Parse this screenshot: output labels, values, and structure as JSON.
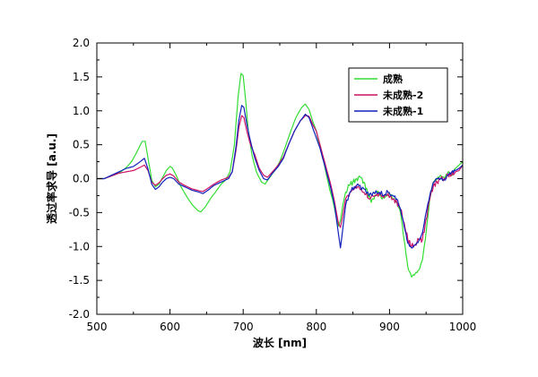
{
  "chart_data": {
    "type": "line",
    "xlabel": "波长 [nm]",
    "ylabel": "透过率求导 [a.u.]",
    "xlim": [
      500,
      1000
    ],
    "ylim": [
      -2.0,
      2.0
    ],
    "x_ticks": [
      500,
      600,
      700,
      800,
      900,
      1000
    ],
    "y_ticks": [
      -2.0,
      -1.5,
      -1.0,
      -0.5,
      0.0,
      0.5,
      1.0,
      1.5,
      2.0
    ],
    "x_tick_labels": [
      "500",
      "600",
      "700",
      "800",
      "900",
      "1000"
    ],
    "y_tick_labels": [
      "-2.0",
      "-1.5",
      "-1.0",
      "-0.5",
      "0.0",
      "0.5",
      "1.0",
      "1.5",
      "2.0"
    ],
    "grid": false,
    "legend_position": "top-right",
    "series": [
      {
        "name": "成熟",
        "color": "#33dd33",
        "points": [
          [
            500,
            0.0
          ],
          [
            510,
            0.0
          ],
          [
            520,
            0.04
          ],
          [
            530,
            0.08
          ],
          [
            540,
            0.16
          ],
          [
            548,
            0.26
          ],
          [
            555,
            0.4
          ],
          [
            562,
            0.55
          ],
          [
            566,
            0.55
          ],
          [
            570,
            0.3
          ],
          [
            575,
            -0.02
          ],
          [
            580,
            -0.12
          ],
          [
            585,
            -0.08
          ],
          [
            590,
            0.02
          ],
          [
            595,
            0.12
          ],
          [
            600,
            0.18
          ],
          [
            603,
            0.16
          ],
          [
            608,
            0.06
          ],
          [
            615,
            -0.12
          ],
          [
            622,
            -0.25
          ],
          [
            630,
            -0.38
          ],
          [
            638,
            -0.47
          ],
          [
            642,
            -0.49
          ],
          [
            648,
            -0.42
          ],
          [
            655,
            -0.3
          ],
          [
            662,
            -0.2
          ],
          [
            670,
            -0.08
          ],
          [
            676,
            -0.02
          ],
          [
            682,
            0.1
          ],
          [
            688,
            0.5
          ],
          [
            693,
            1.2
          ],
          [
            697,
            1.55
          ],
          [
            700,
            1.52
          ],
          [
            703,
            1.2
          ],
          [
            707,
            0.7
          ],
          [
            712,
            0.35
          ],
          [
            718,
            0.1
          ],
          [
            725,
            -0.05
          ],
          [
            730,
            -0.08
          ],
          [
            735,
            0.0
          ],
          [
            742,
            0.1
          ],
          [
            750,
            0.25
          ],
          [
            757,
            0.45
          ],
          [
            765,
            0.7
          ],
          [
            772,
            0.9
          ],
          [
            780,
            1.05
          ],
          [
            785,
            1.1
          ],
          [
            790,
            1.02
          ],
          [
            795,
            0.85
          ],
          [
            800,
            0.7
          ],
          [
            805,
            0.45
          ],
          [
            810,
            0.25
          ],
          [
            815,
            0.0
          ],
          [
            818,
            -0.15
          ],
          [
            822,
            -0.3
          ],
          [
            826,
            -0.5
          ],
          [
            830,
            -0.7
          ],
          [
            833,
            -0.62
          ],
          [
            836,
            -0.4
          ],
          [
            840,
            -0.2
          ],
          [
            845,
            -0.1
          ],
          [
            850,
            -0.05
          ],
          [
            855,
            0.0
          ],
          [
            860,
            0.02
          ],
          [
            865,
            -0.05
          ],
          [
            870,
            -0.2
          ],
          [
            875,
            -0.35
          ],
          [
            880,
            -0.25
          ],
          [
            885,
            -0.2
          ],
          [
            890,
            -0.3
          ],
          [
            895,
            -0.25
          ],
          [
            900,
            -0.22
          ],
          [
            905,
            -0.3
          ],
          [
            910,
            -0.35
          ],
          [
            915,
            -0.5
          ],
          [
            920,
            -0.9
          ],
          [
            925,
            -1.3
          ],
          [
            930,
            -1.45
          ],
          [
            935,
            -1.4
          ],
          [
            940,
            -1.35
          ],
          [
            945,
            -1.2
          ],
          [
            950,
            -0.8
          ],
          [
            955,
            -0.3
          ],
          [
            960,
            -0.05
          ],
          [
            965,
            0.0
          ],
          [
            970,
            0.05
          ],
          [
            975,
            0.0
          ],
          [
            980,
            0.1
          ],
          [
            985,
            0.05
          ],
          [
            990,
            0.15
          ],
          [
            995,
            0.2
          ],
          [
            1000,
            0.25
          ]
        ]
      },
      {
        "name": "未成熟-2",
        "color": "#cc1166",
        "points": [
          [
            500,
            0.0
          ],
          [
            510,
            0.0
          ],
          [
            520,
            0.04
          ],
          [
            530,
            0.08
          ],
          [
            540,
            0.1
          ],
          [
            550,
            0.12
          ],
          [
            558,
            0.16
          ],
          [
            565,
            0.2
          ],
          [
            570,
            0.12
          ],
          [
            575,
            -0.05
          ],
          [
            580,
            -0.1
          ],
          [
            585,
            -0.06
          ],
          [
            590,
            0.0
          ],
          [
            595,
            0.05
          ],
          [
            600,
            0.07
          ],
          [
            605,
            0.04
          ],
          [
            612,
            -0.05
          ],
          [
            620,
            -0.1
          ],
          [
            630,
            -0.15
          ],
          [
            640,
            -0.18
          ],
          [
            645,
            -0.19
          ],
          [
            652,
            -0.14
          ],
          [
            660,
            -0.08
          ],
          [
            670,
            -0.02
          ],
          [
            680,
            0.02
          ],
          [
            685,
            0.1
          ],
          [
            690,
            0.4
          ],
          [
            694,
            0.75
          ],
          [
            698,
            0.93
          ],
          [
            701,
            0.9
          ],
          [
            705,
            0.7
          ],
          [
            710,
            0.5
          ],
          [
            716,
            0.35
          ],
          [
            722,
            0.15
          ],
          [
            728,
            0.05
          ],
          [
            733,
            0.02
          ],
          [
            740,
            0.1
          ],
          [
            748,
            0.2
          ],
          [
            755,
            0.32
          ],
          [
            762,
            0.5
          ],
          [
            770,
            0.7
          ],
          [
            778,
            0.85
          ],
          [
            785,
            0.93
          ],
          [
            790,
            0.92
          ],
          [
            795,
            0.8
          ],
          [
            800,
            0.7
          ],
          [
            805,
            0.5
          ],
          [
            810,
            0.3
          ],
          [
            815,
            0.1
          ],
          [
            820,
            -0.1
          ],
          [
            825,
            -0.35
          ],
          [
            830,
            -0.65
          ],
          [
            833,
            -0.72
          ],
          [
            836,
            -0.55
          ],
          [
            840,
            -0.3
          ],
          [
            846,
            -0.2
          ],
          [
            852,
            -0.15
          ],
          [
            858,
            -0.12
          ],
          [
            865,
            -0.2
          ],
          [
            872,
            -0.3
          ],
          [
            880,
            -0.25
          ],
          [
            886,
            -0.22
          ],
          [
            892,
            -0.28
          ],
          [
            898,
            -0.22
          ],
          [
            905,
            -0.3
          ],
          [
            910,
            -0.35
          ],
          [
            915,
            -0.45
          ],
          [
            920,
            -0.65
          ],
          [
            925,
            -0.9
          ],
          [
            930,
            -1.0
          ],
          [
            935,
            -0.97
          ],
          [
            940,
            -0.9
          ],
          [
            945,
            -0.9
          ],
          [
            950,
            -0.6
          ],
          [
            955,
            -0.3
          ],
          [
            960,
            -0.1
          ],
          [
            965,
            -0.05
          ],
          [
            970,
            0.0
          ],
          [
            975,
            0.0
          ],
          [
            980,
            0.05
          ],
          [
            985,
            0.05
          ],
          [
            990,
            0.1
          ],
          [
            995,
            0.12
          ],
          [
            1000,
            0.2
          ]
        ]
      },
      {
        "name": "未成熟-1",
        "color": "#1122bb",
        "points": [
          [
            500,
            0.0
          ],
          [
            510,
            0.0
          ],
          [
            520,
            0.05
          ],
          [
            530,
            0.1
          ],
          [
            540,
            0.15
          ],
          [
            550,
            0.18
          ],
          [
            558,
            0.24
          ],
          [
            565,
            0.3
          ],
          [
            570,
            0.14
          ],
          [
            575,
            -0.08
          ],
          [
            580,
            -0.16
          ],
          [
            585,
            -0.12
          ],
          [
            590,
            -0.05
          ],
          [
            595,
            0.0
          ],
          [
            600,
            0.02
          ],
          [
            605,
            0.0
          ],
          [
            612,
            -0.08
          ],
          [
            620,
            -0.12
          ],
          [
            630,
            -0.17
          ],
          [
            640,
            -0.2
          ],
          [
            645,
            -0.22
          ],
          [
            652,
            -0.17
          ],
          [
            660,
            -0.1
          ],
          [
            670,
            -0.05
          ],
          [
            680,
            0.0
          ],
          [
            685,
            0.1
          ],
          [
            690,
            0.45
          ],
          [
            694,
            0.85
          ],
          [
            698,
            1.08
          ],
          [
            701,
            1.05
          ],
          [
            705,
            0.8
          ],
          [
            710,
            0.55
          ],
          [
            716,
            0.3
          ],
          [
            722,
            0.12
          ],
          [
            728,
            0.0
          ],
          [
            733,
            -0.02
          ],
          [
            740,
            0.08
          ],
          [
            748,
            0.18
          ],
          [
            755,
            0.3
          ],
          [
            762,
            0.5
          ],
          [
            770,
            0.7
          ],
          [
            778,
            0.85
          ],
          [
            785,
            0.95
          ],
          [
            790,
            0.9
          ],
          [
            795,
            0.75
          ],
          [
            800,
            0.6
          ],
          [
            805,
            0.45
          ],
          [
            810,
            0.25
          ],
          [
            815,
            0.05
          ],
          [
            820,
            -0.15
          ],
          [
            825,
            -0.4
          ],
          [
            830,
            -0.8
          ],
          [
            833,
            -1.02
          ],
          [
            836,
            -0.75
          ],
          [
            840,
            -0.4
          ],
          [
            846,
            -0.2
          ],
          [
            852,
            -0.12
          ],
          [
            858,
            -0.1
          ],
          [
            865,
            -0.15
          ],
          [
            872,
            -0.25
          ],
          [
            880,
            -0.22
          ],
          [
            886,
            -0.2
          ],
          [
            892,
            -0.25
          ],
          [
            898,
            -0.2
          ],
          [
            905,
            -0.25
          ],
          [
            910,
            -0.3
          ],
          [
            915,
            -0.45
          ],
          [
            920,
            -0.7
          ],
          [
            925,
            -0.95
          ],
          [
            930,
            -1.02
          ],
          [
            935,
            -0.98
          ],
          [
            940,
            -0.92
          ],
          [
            945,
            -0.8
          ],
          [
            950,
            -0.5
          ],
          [
            955,
            -0.25
          ],
          [
            960,
            -0.05
          ],
          [
            965,
            0.0
          ],
          [
            970,
            0.0
          ],
          [
            975,
            -0.02
          ],
          [
            980,
            0.05
          ],
          [
            985,
            0.1
          ],
          [
            990,
            0.12
          ],
          [
            995,
            0.15
          ],
          [
            1000,
            0.2
          ]
        ]
      }
    ]
  }
}
